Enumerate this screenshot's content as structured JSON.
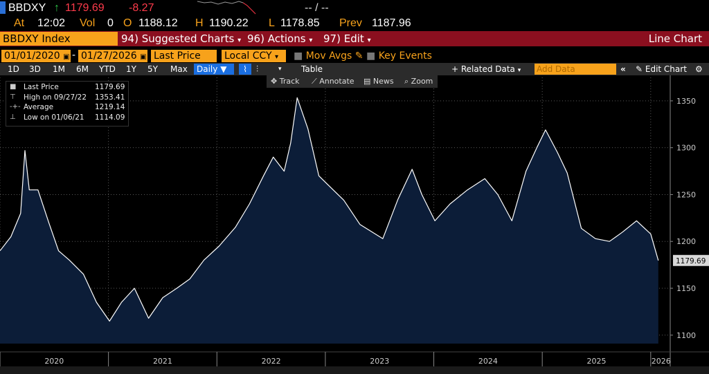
{
  "header": {
    "ticker": "BBDXY",
    "last": "1179.69",
    "change": "-8.27",
    "quote": "-- / --",
    "at_label": "At",
    "time": "12:02",
    "vol_label": "Vol",
    "volume": "0",
    "open_label": "O",
    "open": "1188.12",
    "high_label": "H",
    "high": "1190.22",
    "low_label": "L",
    "low": "1178.85",
    "prev_label": "Prev",
    "prev": "1187.96"
  },
  "toolbar": {
    "security": "BBDXY Index",
    "menus": [
      {
        "number": "94)",
        "label": "Suggested Charts"
      },
      {
        "number": "96)",
        "label": "Actions"
      },
      {
        "number": "97)",
        "label": "Edit"
      }
    ],
    "chart_type": "Line Chart",
    "start_date": "01/01/2020",
    "date_separator": "-",
    "end_date": "01/27/2026",
    "field": "Last Price",
    "currency": "Local CCY",
    "options": [
      "Mov Avgs",
      "Key Events"
    ],
    "periods": [
      "1D",
      "3D",
      "1M",
      "6M",
      "YTD",
      "1Y",
      "5Y",
      "Max"
    ],
    "frequency": "Daily",
    "table": "Table",
    "related_data": "+ Related Data",
    "add_data": "Add Data",
    "edit_chart": "Edit Chart"
  },
  "chart_tools": [
    "Track",
    "Annotate",
    "News",
    "Zoom"
  ],
  "chart_data": {
    "type": "area",
    "legend": [
      {
        "label": "Last Price",
        "value": "1179.69"
      },
      {
        "label": "High on 09/27/22",
        "value": "1353.41"
      },
      {
        "label": "Average",
        "value": "1219.14"
      },
      {
        "label": "Low on 01/06/21",
        "value": "1114.09"
      }
    ],
    "x": [
      2020.0,
      2020.1,
      2020.19,
      2020.23,
      2020.27,
      2020.35,
      2020.45,
      2020.54,
      2020.64,
      2020.77,
      2020.89,
      2021.01,
      2021.12,
      2021.24,
      2021.37,
      2021.5,
      2021.63,
      2021.75,
      2021.88,
      2022.02,
      2022.17,
      2022.3,
      2022.43,
      2022.52,
      2022.62,
      2022.68,
      2022.74,
      2022.84,
      2022.94,
      2023.01,
      2023.17,
      2023.32,
      2023.53,
      2023.67,
      2023.8,
      2023.89,
      2024.01,
      2024.15,
      2024.31,
      2024.47,
      2024.59,
      2024.72,
      2024.85,
      2024.95,
      2025.03,
      2025.14,
      2025.23,
      2025.36,
      2025.49,
      2025.62,
      2025.74,
      2025.87,
      2026.0,
      2026.07
    ],
    "series": [
      {
        "name": "Last Price",
        "color": "#ffffff",
        "fill": "#0c1d38",
        "values": [
          1190,
          1205,
          1230,
          1297,
          1255,
          1255,
          1220,
          1190,
          1180,
          1165,
          1135,
          1115,
          1135,
          1150,
          1118,
          1140,
          1150,
          1160,
          1180,
          1195,
          1215,
          1240,
          1270,
          1290,
          1275,
          1305,
          1353.41,
          1320,
          1270,
          1262,
          1244,
          1218,
          1203,
          1245,
          1277,
          1250,
          1222,
          1240,
          1255,
          1267,
          1250,
          1222,
          1275,
          1300,
          1319,
          1295,
          1273,
          1214,
          1203,
          1200,
          1210,
          1222,
          1208,
          1179.69
        ]
      }
    ],
    "xlim": [
      2020,
      2026.18
    ],
    "xticks": [
      2020,
      2021,
      2022,
      2023,
      2024,
      2025,
      2026
    ],
    "ylim": [
      1091,
      1375
    ],
    "yticks": [
      1100,
      1150,
      1200,
      1250,
      1300,
      1350
    ],
    "grid": true
  }
}
